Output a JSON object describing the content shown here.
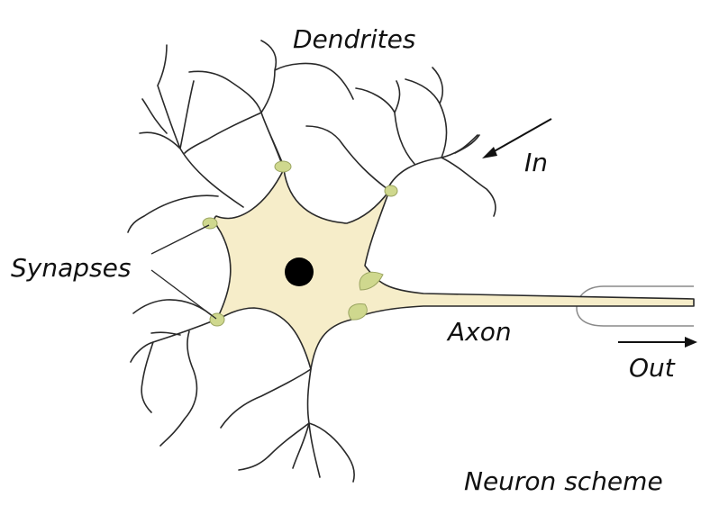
{
  "labels": {
    "dendrites": "Dendrites",
    "in": "In",
    "synapses": "Synapses",
    "axon": "Axon",
    "out": "Out",
    "caption": "Neuron scheme"
  },
  "colors": {
    "cell_body": "#f6edc9",
    "synapse": "#cfd88e",
    "nucleus": "#000000",
    "stroke": "#2a2a2a"
  }
}
